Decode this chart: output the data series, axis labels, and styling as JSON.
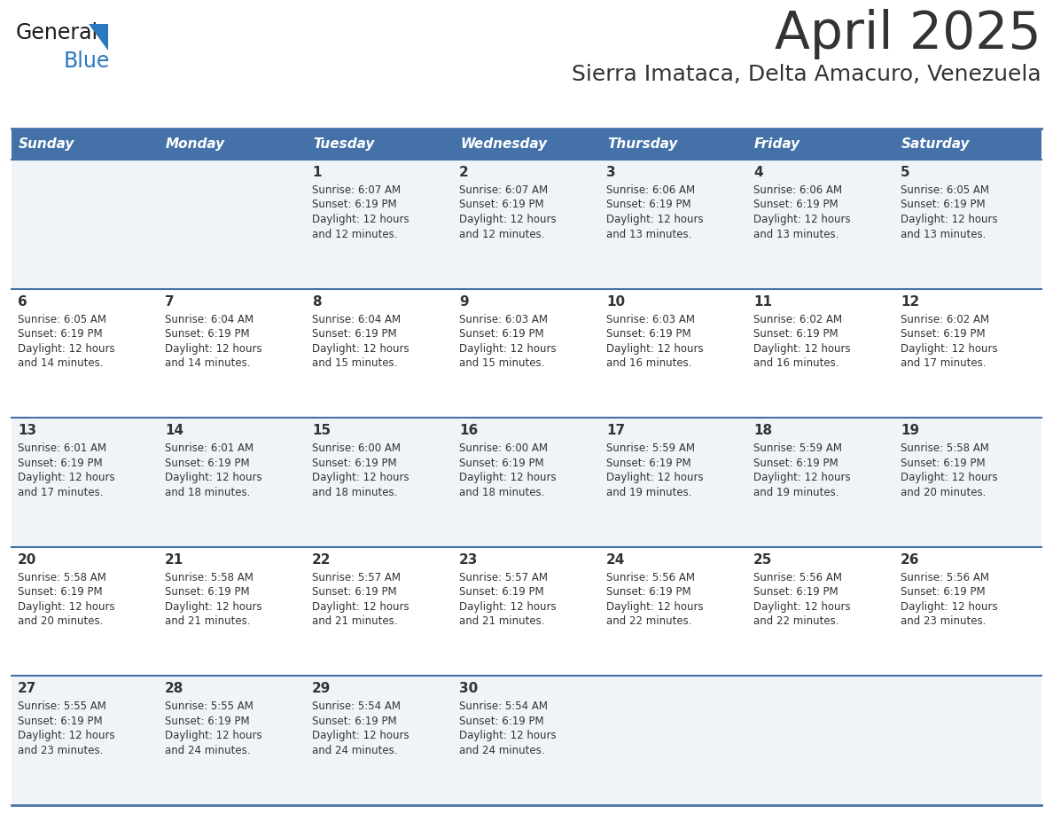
{
  "title": "April 2025",
  "subtitle": "Sierra Imataca, Delta Amacuro, Venezuela",
  "header_color": "#4472a8",
  "header_text_color": "#ffffff",
  "cell_bg_even": "#f0f4f8",
  "cell_bg_odd": "#ffffff",
  "divider_color": "#4472a8",
  "text_color": "#333333",
  "days_of_week": [
    "Sunday",
    "Monday",
    "Tuesday",
    "Wednesday",
    "Thursday",
    "Friday",
    "Saturday"
  ],
  "logo_general_color": "#1a1a1a",
  "logo_blue_color": "#2a78bf",
  "calendar": [
    [
      {
        "day": null,
        "sunrise": null,
        "sunset": null,
        "daylight": null
      },
      {
        "day": null,
        "sunrise": null,
        "sunset": null,
        "daylight": null
      },
      {
        "day": "1",
        "sunrise": "6:07 AM",
        "sunset": "6:19 PM",
        "daylight": "12 hours and 12 minutes."
      },
      {
        "day": "2",
        "sunrise": "6:07 AM",
        "sunset": "6:19 PM",
        "daylight": "12 hours and 12 minutes."
      },
      {
        "day": "3",
        "sunrise": "6:06 AM",
        "sunset": "6:19 PM",
        "daylight": "12 hours and 13 minutes."
      },
      {
        "day": "4",
        "sunrise": "6:06 AM",
        "sunset": "6:19 PM",
        "daylight": "12 hours and 13 minutes."
      },
      {
        "day": "5",
        "sunrise": "6:05 AM",
        "sunset": "6:19 PM",
        "daylight": "12 hours and 13 minutes."
      }
    ],
    [
      {
        "day": "6",
        "sunrise": "6:05 AM",
        "sunset": "6:19 PM",
        "daylight": "12 hours and 14 minutes."
      },
      {
        "day": "7",
        "sunrise": "6:04 AM",
        "sunset": "6:19 PM",
        "daylight": "12 hours and 14 minutes."
      },
      {
        "day": "8",
        "sunrise": "6:04 AM",
        "sunset": "6:19 PM",
        "daylight": "12 hours and 15 minutes."
      },
      {
        "day": "9",
        "sunrise": "6:03 AM",
        "sunset": "6:19 PM",
        "daylight": "12 hours and 15 minutes."
      },
      {
        "day": "10",
        "sunrise": "6:03 AM",
        "sunset": "6:19 PM",
        "daylight": "12 hours and 16 minutes."
      },
      {
        "day": "11",
        "sunrise": "6:02 AM",
        "sunset": "6:19 PM",
        "daylight": "12 hours and 16 minutes."
      },
      {
        "day": "12",
        "sunrise": "6:02 AM",
        "sunset": "6:19 PM",
        "daylight": "12 hours and 17 minutes."
      }
    ],
    [
      {
        "day": "13",
        "sunrise": "6:01 AM",
        "sunset": "6:19 PM",
        "daylight": "12 hours and 17 minutes."
      },
      {
        "day": "14",
        "sunrise": "6:01 AM",
        "sunset": "6:19 PM",
        "daylight": "12 hours and 18 minutes."
      },
      {
        "day": "15",
        "sunrise": "6:00 AM",
        "sunset": "6:19 PM",
        "daylight": "12 hours and 18 minutes."
      },
      {
        "day": "16",
        "sunrise": "6:00 AM",
        "sunset": "6:19 PM",
        "daylight": "12 hours and 18 minutes."
      },
      {
        "day": "17",
        "sunrise": "5:59 AM",
        "sunset": "6:19 PM",
        "daylight": "12 hours and 19 minutes."
      },
      {
        "day": "18",
        "sunrise": "5:59 AM",
        "sunset": "6:19 PM",
        "daylight": "12 hours and 19 minutes."
      },
      {
        "day": "19",
        "sunrise": "5:58 AM",
        "sunset": "6:19 PM",
        "daylight": "12 hours and 20 minutes."
      }
    ],
    [
      {
        "day": "20",
        "sunrise": "5:58 AM",
        "sunset": "6:19 PM",
        "daylight": "12 hours and 20 minutes."
      },
      {
        "day": "21",
        "sunrise": "5:58 AM",
        "sunset": "6:19 PM",
        "daylight": "12 hours and 21 minutes."
      },
      {
        "day": "22",
        "sunrise": "5:57 AM",
        "sunset": "6:19 PM",
        "daylight": "12 hours and 21 minutes."
      },
      {
        "day": "23",
        "sunrise": "5:57 AM",
        "sunset": "6:19 PM",
        "daylight": "12 hours and 21 minutes."
      },
      {
        "day": "24",
        "sunrise": "5:56 AM",
        "sunset": "6:19 PM",
        "daylight": "12 hours and 22 minutes."
      },
      {
        "day": "25",
        "sunrise": "5:56 AM",
        "sunset": "6:19 PM",
        "daylight": "12 hours and 22 minutes."
      },
      {
        "day": "26",
        "sunrise": "5:56 AM",
        "sunset": "6:19 PM",
        "daylight": "12 hours and 23 minutes."
      }
    ],
    [
      {
        "day": "27",
        "sunrise": "5:55 AM",
        "sunset": "6:19 PM",
        "daylight": "12 hours and 23 minutes."
      },
      {
        "day": "28",
        "sunrise": "5:55 AM",
        "sunset": "6:19 PM",
        "daylight": "12 hours and 24 minutes."
      },
      {
        "day": "29",
        "sunrise": "5:54 AM",
        "sunset": "6:19 PM",
        "daylight": "12 hours and 24 minutes."
      },
      {
        "day": "30",
        "sunrise": "5:54 AM",
        "sunset": "6:19 PM",
        "daylight": "12 hours and 24 minutes."
      },
      {
        "day": null,
        "sunrise": null,
        "sunset": null,
        "daylight": null
      },
      {
        "day": null,
        "sunrise": null,
        "sunset": null,
        "daylight": null
      },
      {
        "day": null,
        "sunrise": null,
        "sunset": null,
        "daylight": null
      }
    ]
  ]
}
